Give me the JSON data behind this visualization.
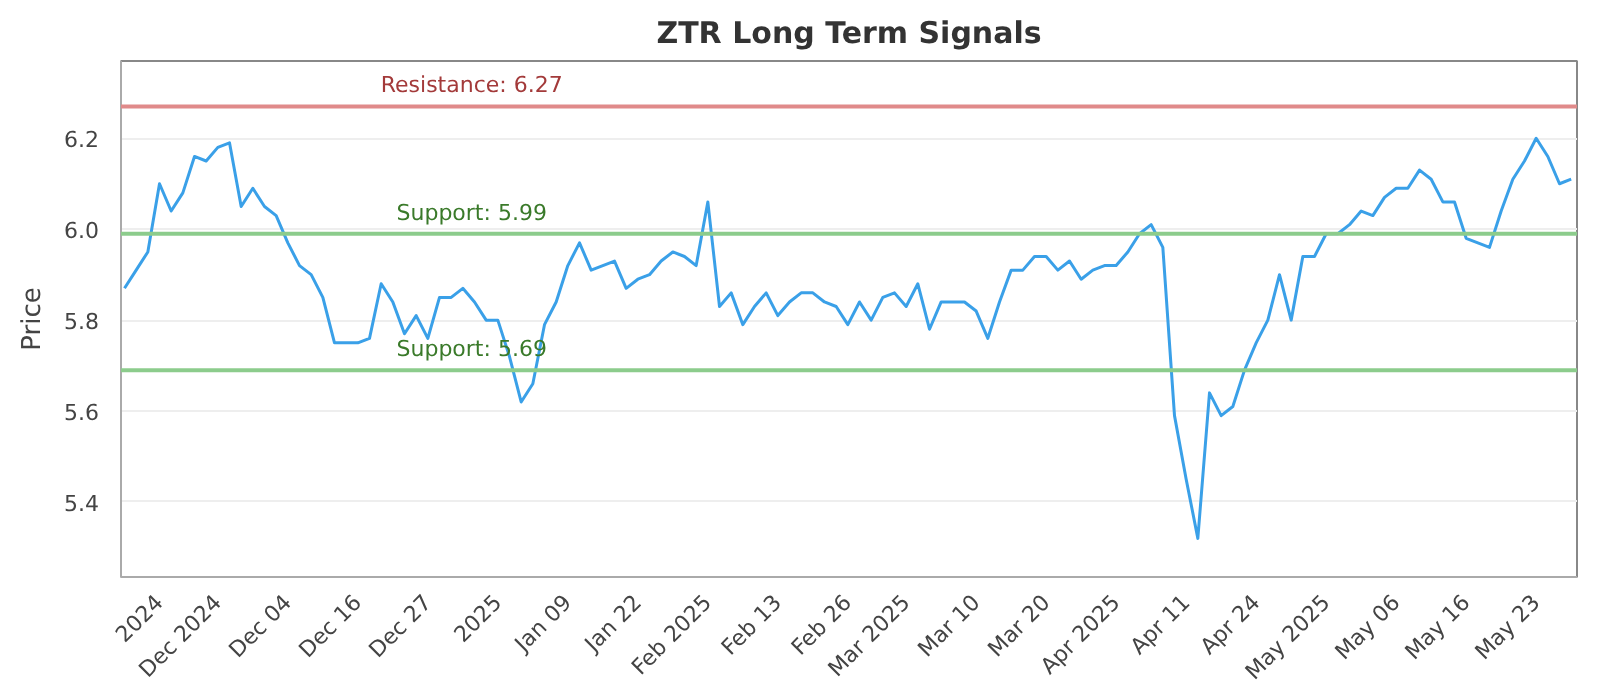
{
  "chart_data": {
    "type": "line",
    "title": "ZTR Long Term Signals",
    "ylabel": "Price",
    "categories": [
      null,
      null,
      null,
      "2024",
      null,
      null,
      null,
      null,
      "Dec 2024",
      null,
      null,
      null,
      null,
      null,
      "Dec 04",
      null,
      null,
      null,
      null,
      null,
      "Dec 16",
      null,
      null,
      null,
      null,
      null,
      "Dec 27",
      null,
      null,
      null,
      null,
      null,
      "2025",
      null,
      null,
      null,
      null,
      null,
      "Jan 09",
      null,
      null,
      null,
      null,
      null,
      "Jan 22",
      null,
      null,
      null,
      null,
      null,
      "Feb 2025",
      null,
      null,
      null,
      null,
      null,
      "Feb 13",
      null,
      null,
      null,
      null,
      null,
      "Feb 26",
      null,
      null,
      null,
      null,
      "Mar 2025",
      null,
      null,
      null,
      null,
      null,
      "Mar 10",
      null,
      null,
      null,
      null,
      null,
      "Mar 20",
      null,
      null,
      null,
      null,
      null,
      "Apr 2025",
      null,
      null,
      null,
      null,
      null,
      "Apr 11",
      null,
      null,
      null,
      null,
      null,
      "Apr 24",
      null,
      null,
      null,
      null,
      null,
      "May 2025",
      null,
      null,
      null,
      null,
      null,
      "May 06",
      null,
      null,
      null,
      null,
      null,
      "May 16",
      null,
      null,
      null,
      null,
      null,
      "May 23",
      null,
      null,
      null
    ],
    "series": [
      {
        "color": "#3aa0e8",
        "values": [
          5.87,
          5.91,
          5.95,
          6.1,
          6.04,
          6.08,
          6.16,
          6.15,
          6.18,
          6.19,
          6.05,
          6.09,
          6.05,
          6.03,
          5.97,
          5.92,
          5.9,
          5.85,
          5.75,
          5.75,
          5.75,
          5.76,
          5.88,
          5.84,
          5.77,
          5.81,
          5.76,
          5.85,
          5.85,
          5.87,
          5.84,
          5.8,
          5.8,
          5.72,
          5.62,
          5.66,
          5.79,
          5.84,
          5.92,
          5.97,
          5.91,
          5.92,
          5.93,
          5.87,
          5.89,
          5.9,
          5.93,
          5.95,
          5.94,
          5.92,
          6.06,
          5.83,
          5.86,
          5.79,
          5.83,
          5.86,
          5.81,
          5.84,
          5.86,
          5.86,
          5.84,
          5.83,
          5.79,
          5.84,
          5.8,
          5.85,
          5.86,
          5.83,
          5.88,
          5.78,
          5.84,
          5.84,
          5.84,
          5.82,
          5.76,
          5.84,
          5.91,
          5.91,
          5.94,
          5.94,
          5.91,
          5.93,
          5.89,
          5.91,
          5.92,
          5.92,
          5.95,
          5.99,
          6.01,
          5.96,
          5.59,
          5.45,
          5.32,
          5.64,
          5.59,
          5.61,
          5.69,
          5.75,
          5.8,
          5.9,
          5.8,
          5.94,
          5.94,
          5.99,
          5.99,
          6.01,
          6.04,
          6.03,
          6.07,
          6.09,
          6.09,
          6.13,
          6.11,
          6.06,
          6.06,
          5.98,
          5.97,
          5.96,
          6.04,
          6.11,
          6.15,
          6.2,
          6.16,
          6.1,
          6.11
        ]
      }
    ],
    "ylim": [
      5.235,
      6.37
    ],
    "yticks": [
      5.4,
      5.6,
      5.8,
      {
        "value": 6.0,
        "label": "6.0"
      },
      6.2
    ],
    "grid": "y",
    "marker": "none",
    "line_style": "solid",
    "ref_lines": [
      {
        "axis": "y",
        "value": 6.27,
        "label": "Resistance: 6.27",
        "color": "#e08a8a"
      },
      {
        "axis": "y",
        "value": 5.99,
        "label": "Support: 5.99",
        "color": "#8ccc8c"
      },
      {
        "axis": "y",
        "value": 5.69,
        "label": "Support: 5.69",
        "color": "#8ccc8c"
      }
    ]
  }
}
